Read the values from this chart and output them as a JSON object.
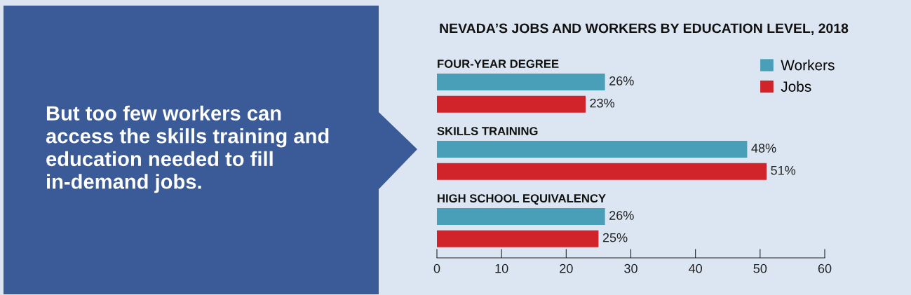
{
  "chart_data": {
    "type": "bar",
    "orientation": "horizontal",
    "title": "NEVADA’S JOBS AND WORKERS BY EDUCATION LEVEL, 2018",
    "categories": [
      "FOUR-YEAR DEGREE",
      "SKILLS TRAINING",
      "HIGH SCHOOL EQUIVALENCY"
    ],
    "series": [
      {
        "name": "Workers",
        "color": "#4a9fb8",
        "values": [
          26,
          48,
          26
        ],
        "value_labels": [
          "26%",
          "48%",
          "26%"
        ]
      },
      {
        "name": "Jobs",
        "color": "#d0232a",
        "values": [
          23,
          51,
          25
        ],
        "value_labels": [
          "23%",
          "51%",
          "25%"
        ]
      }
    ],
    "xlim": [
      0,
      60
    ],
    "xticks": [
      0,
      10,
      20,
      30,
      40,
      50,
      60
    ],
    "grid": false,
    "legend": "top right",
    "annotations": [
      "But too few workers can access the skills training and education needed to fill in-demand jobs."
    ]
  }
}
